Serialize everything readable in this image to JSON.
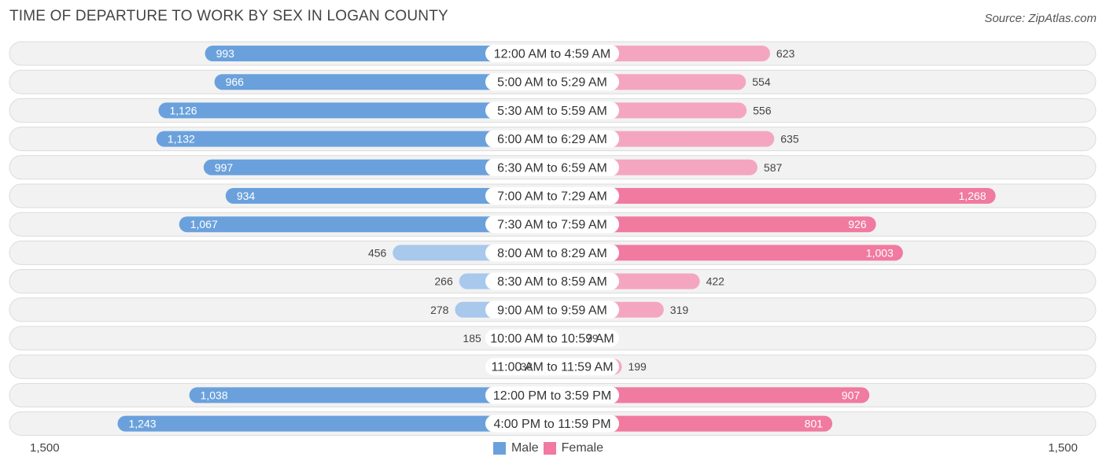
{
  "header": {
    "title": "TIME OF DEPARTURE TO WORK BY SEX IN LOGAN COUNTY",
    "source": "Source: ZipAtlas.com"
  },
  "colors": {
    "male_strong": "#6aa1dc",
    "male_light": "#a8c8ec",
    "female_strong": "#f07aa0",
    "female_light": "#f4a6c1"
  },
  "chart_data": {
    "type": "bar",
    "orientation": "horizontal-diverging",
    "title": "TIME OF DEPARTURE TO WORK BY SEX IN LOGAN COUNTY",
    "categories": [
      "12:00 AM to 4:59 AM",
      "5:00 AM to 5:29 AM",
      "5:30 AM to 5:59 AM",
      "6:00 AM to 6:29 AM",
      "6:30 AM to 6:59 AM",
      "7:00 AM to 7:29 AM",
      "7:30 AM to 7:59 AM",
      "8:00 AM to 8:29 AM",
      "8:30 AM to 8:59 AM",
      "9:00 AM to 9:59 AM",
      "10:00 AM to 10:59 AM",
      "11:00 AM to 11:59 AM",
      "12:00 PM to 3:59 PM",
      "4:00 PM to 11:59 PM"
    ],
    "series": [
      {
        "name": "Male",
        "values": [
          993,
          966,
          1126,
          1132,
          997,
          934,
          1067,
          456,
          266,
          278,
          185,
          38,
          1038,
          1243
        ],
        "labels": [
          "993",
          "966",
          "1,126",
          "1,132",
          "997",
          "934",
          "1,067",
          "456",
          "266",
          "278",
          "185",
          "38",
          "1,038",
          "1,243"
        ]
      },
      {
        "name": "Female",
        "values": [
          623,
          554,
          556,
          635,
          587,
          1268,
          926,
          1003,
          422,
          319,
          79,
          199,
          907,
          801
        ],
        "labels": [
          "623",
          "554",
          "556",
          "635",
          "587",
          "1,268",
          "926",
          "1,003",
          "422",
          "319",
          "79",
          "199",
          "907",
          "801"
        ]
      }
    ],
    "axis": {
      "min_label": "1,500",
      "max_label": "1,500",
      "max": 1500
    },
    "legend": {
      "position": "bottom-center",
      "male": "Male",
      "female": "Female"
    }
  }
}
